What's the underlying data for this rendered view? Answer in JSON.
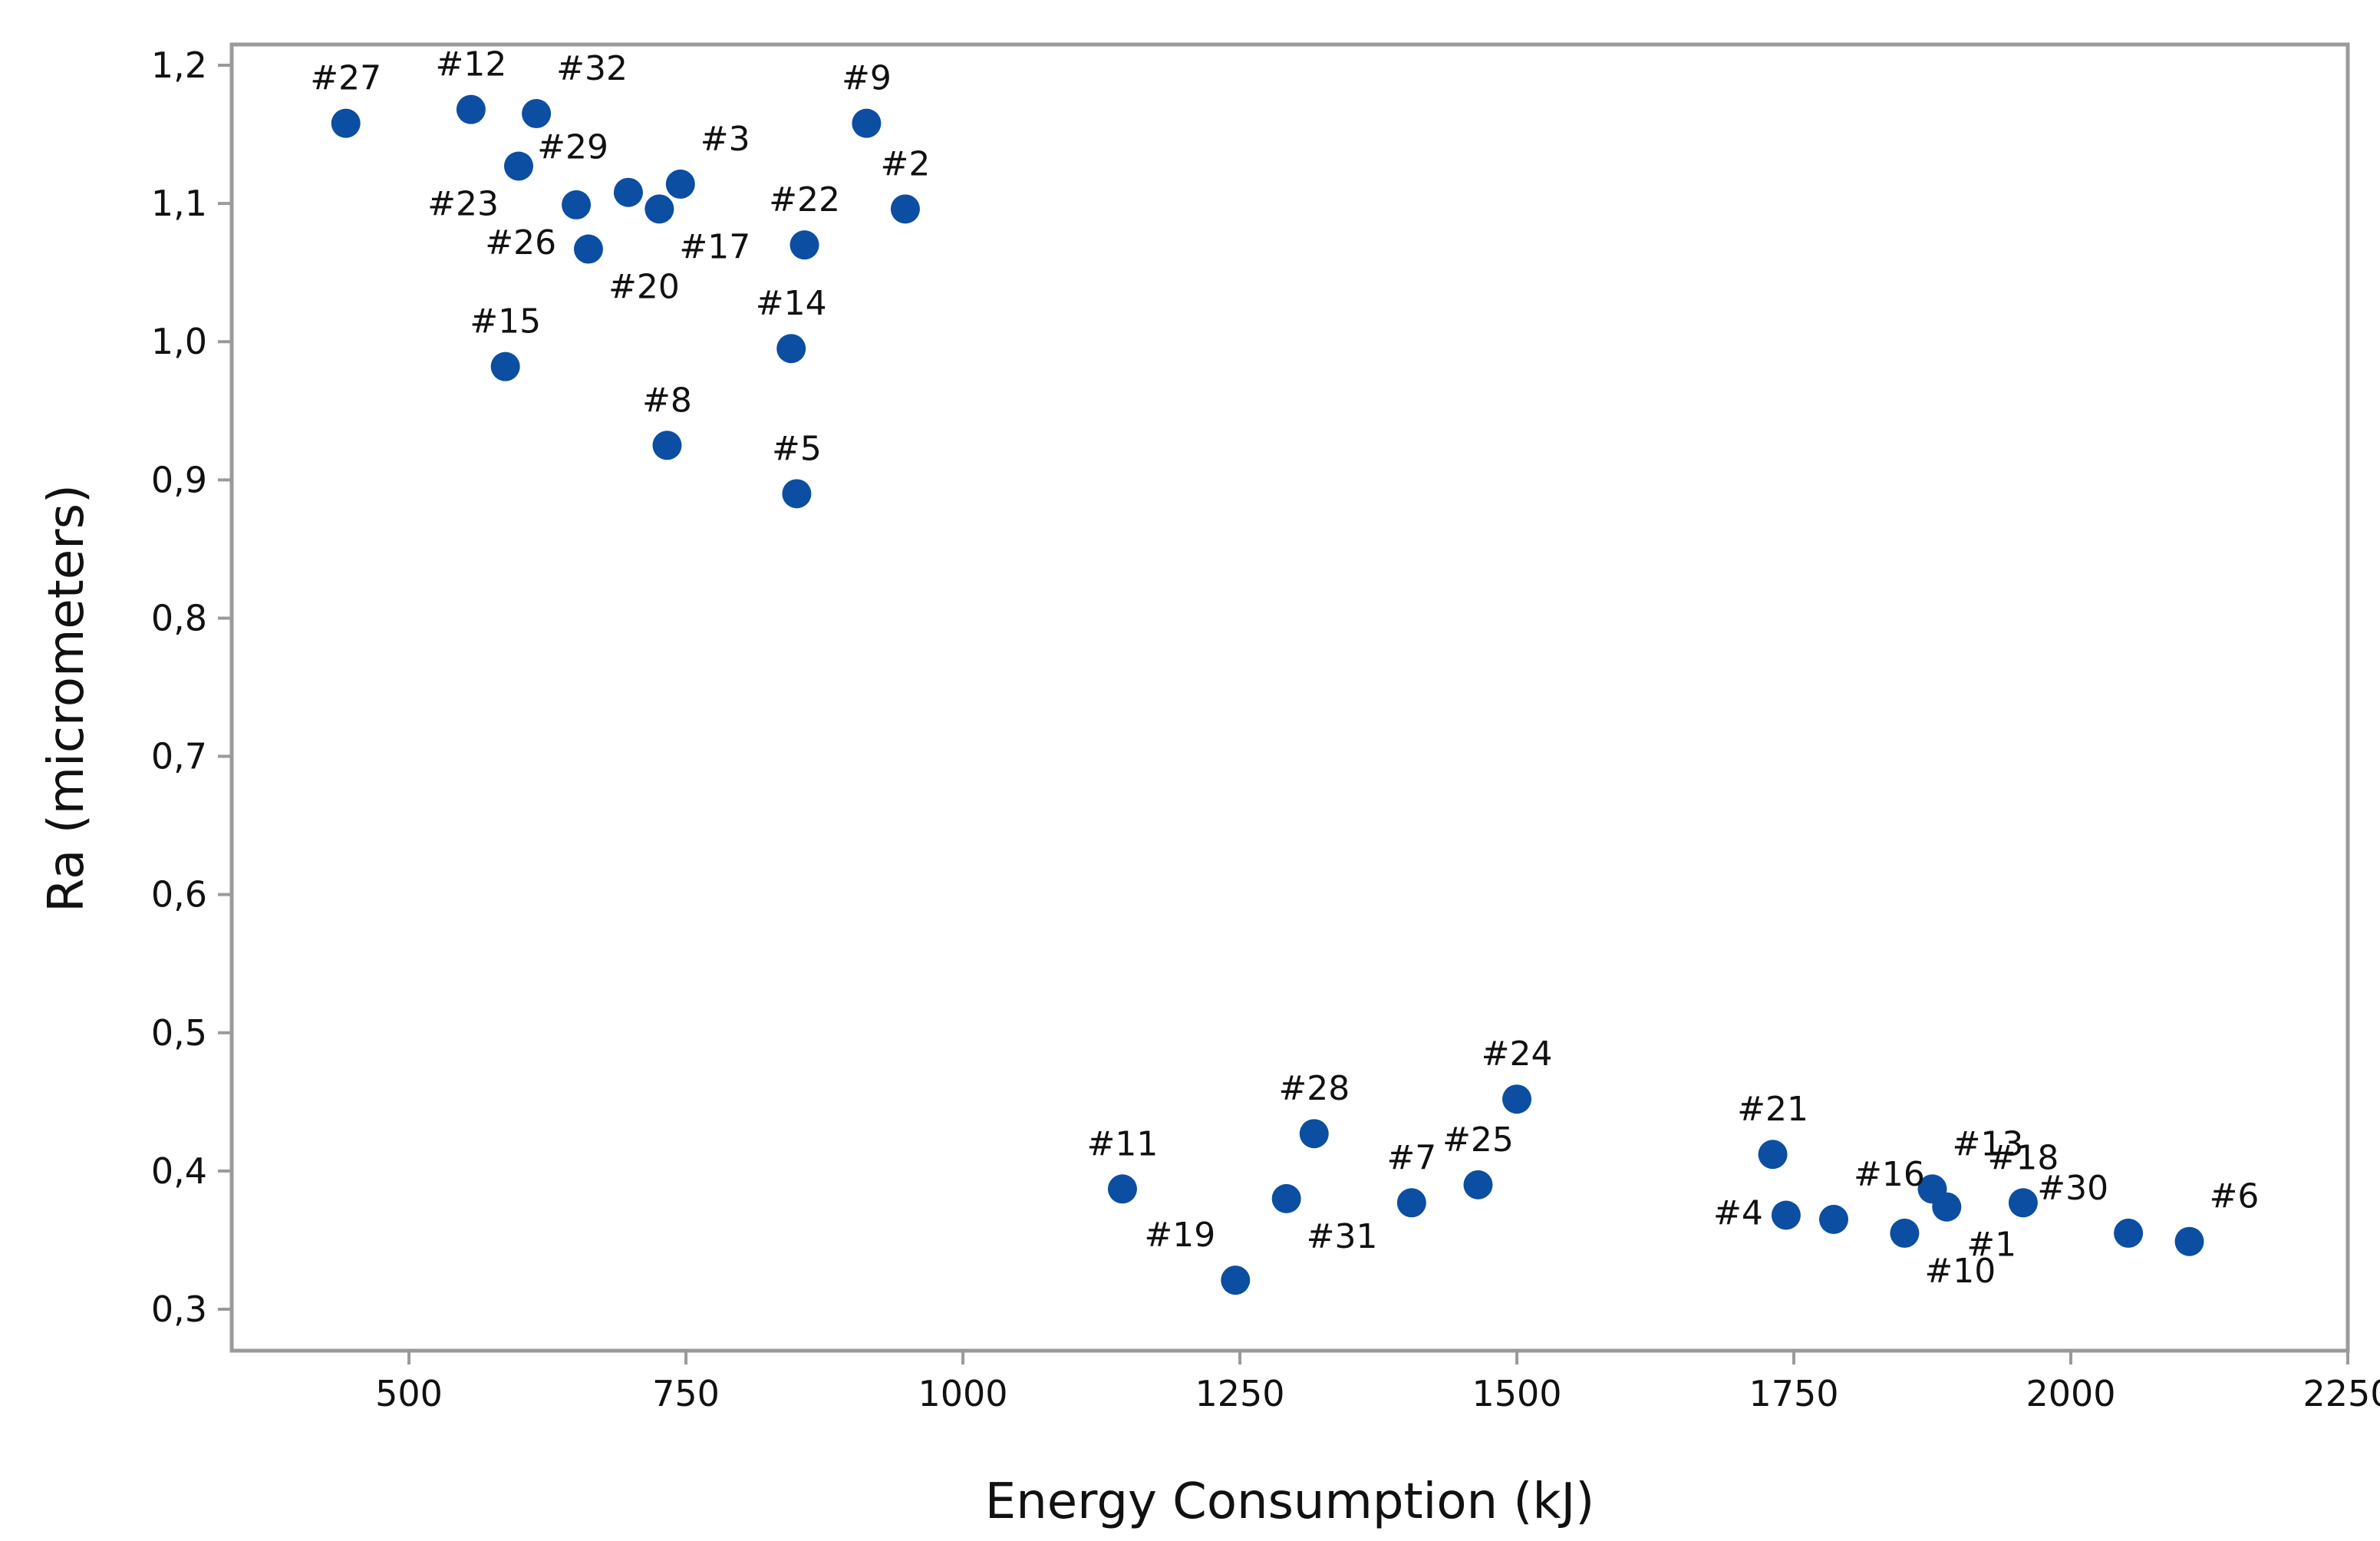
{
  "chart_data": {
    "type": "scatter",
    "title": "",
    "xlabel": "Energy Consumption (kJ)",
    "ylabel": "Ra (micrometers)",
    "xlim": [
      340,
      2250
    ],
    "ylim": [
      0.27,
      1.215
    ],
    "x_ticks": [
      500,
      750,
      1000,
      1250,
      1500,
      1750,
      2000,
      2250
    ],
    "x_tick_labels": [
      "500",
      "750",
      "1000",
      "1250",
      "1500",
      "1750",
      "2000",
      "2250"
    ],
    "y_ticks": [
      0.3,
      0.4,
      0.5,
      0.6,
      0.7,
      0.8,
      0.9,
      1.0,
      1.1,
      1.2
    ],
    "y_tick_labels": [
      "0,3",
      "0,4",
      "0,5",
      "0,6",
      "0,7",
      "0,8",
      "0,9",
      "1,0",
      "1,1",
      "1,2"
    ],
    "grid": false,
    "marker_color": "#0B4EA2",
    "points": [
      {
        "label": "#27",
        "x": 443,
        "y": 1.158,
        "label_pos": "above"
      },
      {
        "label": "#12",
        "x": 556,
        "y": 1.168,
        "label_pos": "above"
      },
      {
        "label": "#32",
        "x": 615,
        "y": 1.165,
        "label_pos": "above-right"
      },
      {
        "label": "#23",
        "x": 599,
        "y": 1.127,
        "label_pos": "below-left"
      },
      {
        "label": "#29",
        "x": 698,
        "y": 1.108,
        "label_pos": "above-left"
      },
      {
        "label": "#3",
        "x": 745,
        "y": 1.114,
        "label_pos": "above-right"
      },
      {
        "label": "#26",
        "x": 651,
        "y": 1.099,
        "label_pos": "below-left"
      },
      {
        "label": "#17",
        "x": 726,
        "y": 1.096,
        "label_pos": "below-right"
      },
      {
        "label": "#20",
        "x": 662,
        "y": 1.067,
        "label_pos": "below-right"
      },
      {
        "label": "#9",
        "x": 913,
        "y": 1.158,
        "label_pos": "above"
      },
      {
        "label": "#2",
        "x": 948,
        "y": 1.096,
        "label_pos": "above"
      },
      {
        "label": "#22",
        "x": 857,
        "y": 1.07,
        "label_pos": "above"
      },
      {
        "label": "#15",
        "x": 587,
        "y": 0.982,
        "label_pos": "above"
      },
      {
        "label": "#14",
        "x": 845,
        "y": 0.995,
        "label_pos": "above"
      },
      {
        "label": "#8",
        "x": 733,
        "y": 0.925,
        "label_pos": "above"
      },
      {
        "label": "#5",
        "x": 850,
        "y": 0.89,
        "label_pos": "above"
      },
      {
        "label": "#11",
        "x": 1144,
        "y": 0.387,
        "label_pos": "above"
      },
      {
        "label": "#19",
        "x": 1246,
        "y": 0.321,
        "label_pos": "above-left"
      },
      {
        "label": "#28",
        "x": 1317,
        "y": 0.427,
        "label_pos": "above"
      },
      {
        "label": "#31",
        "x": 1292,
        "y": 0.38,
        "label_pos": "below-right"
      },
      {
        "label": "#7",
        "x": 1405,
        "y": 0.377,
        "label_pos": "above"
      },
      {
        "label": "#25",
        "x": 1465,
        "y": 0.39,
        "label_pos": "above"
      },
      {
        "label": "#24",
        "x": 1500,
        "y": 0.452,
        "label_pos": "above"
      },
      {
        "label": "#21",
        "x": 1731,
        "y": 0.412,
        "label_pos": "above"
      },
      {
        "label": "#4",
        "x": 1743,
        "y": 0.368,
        "label_pos": "left"
      },
      {
        "label": "#16",
        "x": 1786,
        "y": 0.365,
        "label_pos": "above-right"
      },
      {
        "label": "#10",
        "x": 1850,
        "y": 0.355,
        "label_pos": "below-right"
      },
      {
        "label": "#13",
        "x": 1875,
        "y": 0.387,
        "label_pos": "above-right"
      },
      {
        "label": "#1",
        "x": 1888,
        "y": 0.374,
        "label_pos": "below-right"
      },
      {
        "label": "#18",
        "x": 1957,
        "y": 0.377,
        "label_pos": "above"
      },
      {
        "label": "#30",
        "x": 2052,
        "y": 0.355,
        "label_pos": "above-left"
      },
      {
        "label": "#6",
        "x": 2107,
        "y": 0.349,
        "label_pos": "above-right"
      }
    ]
  }
}
